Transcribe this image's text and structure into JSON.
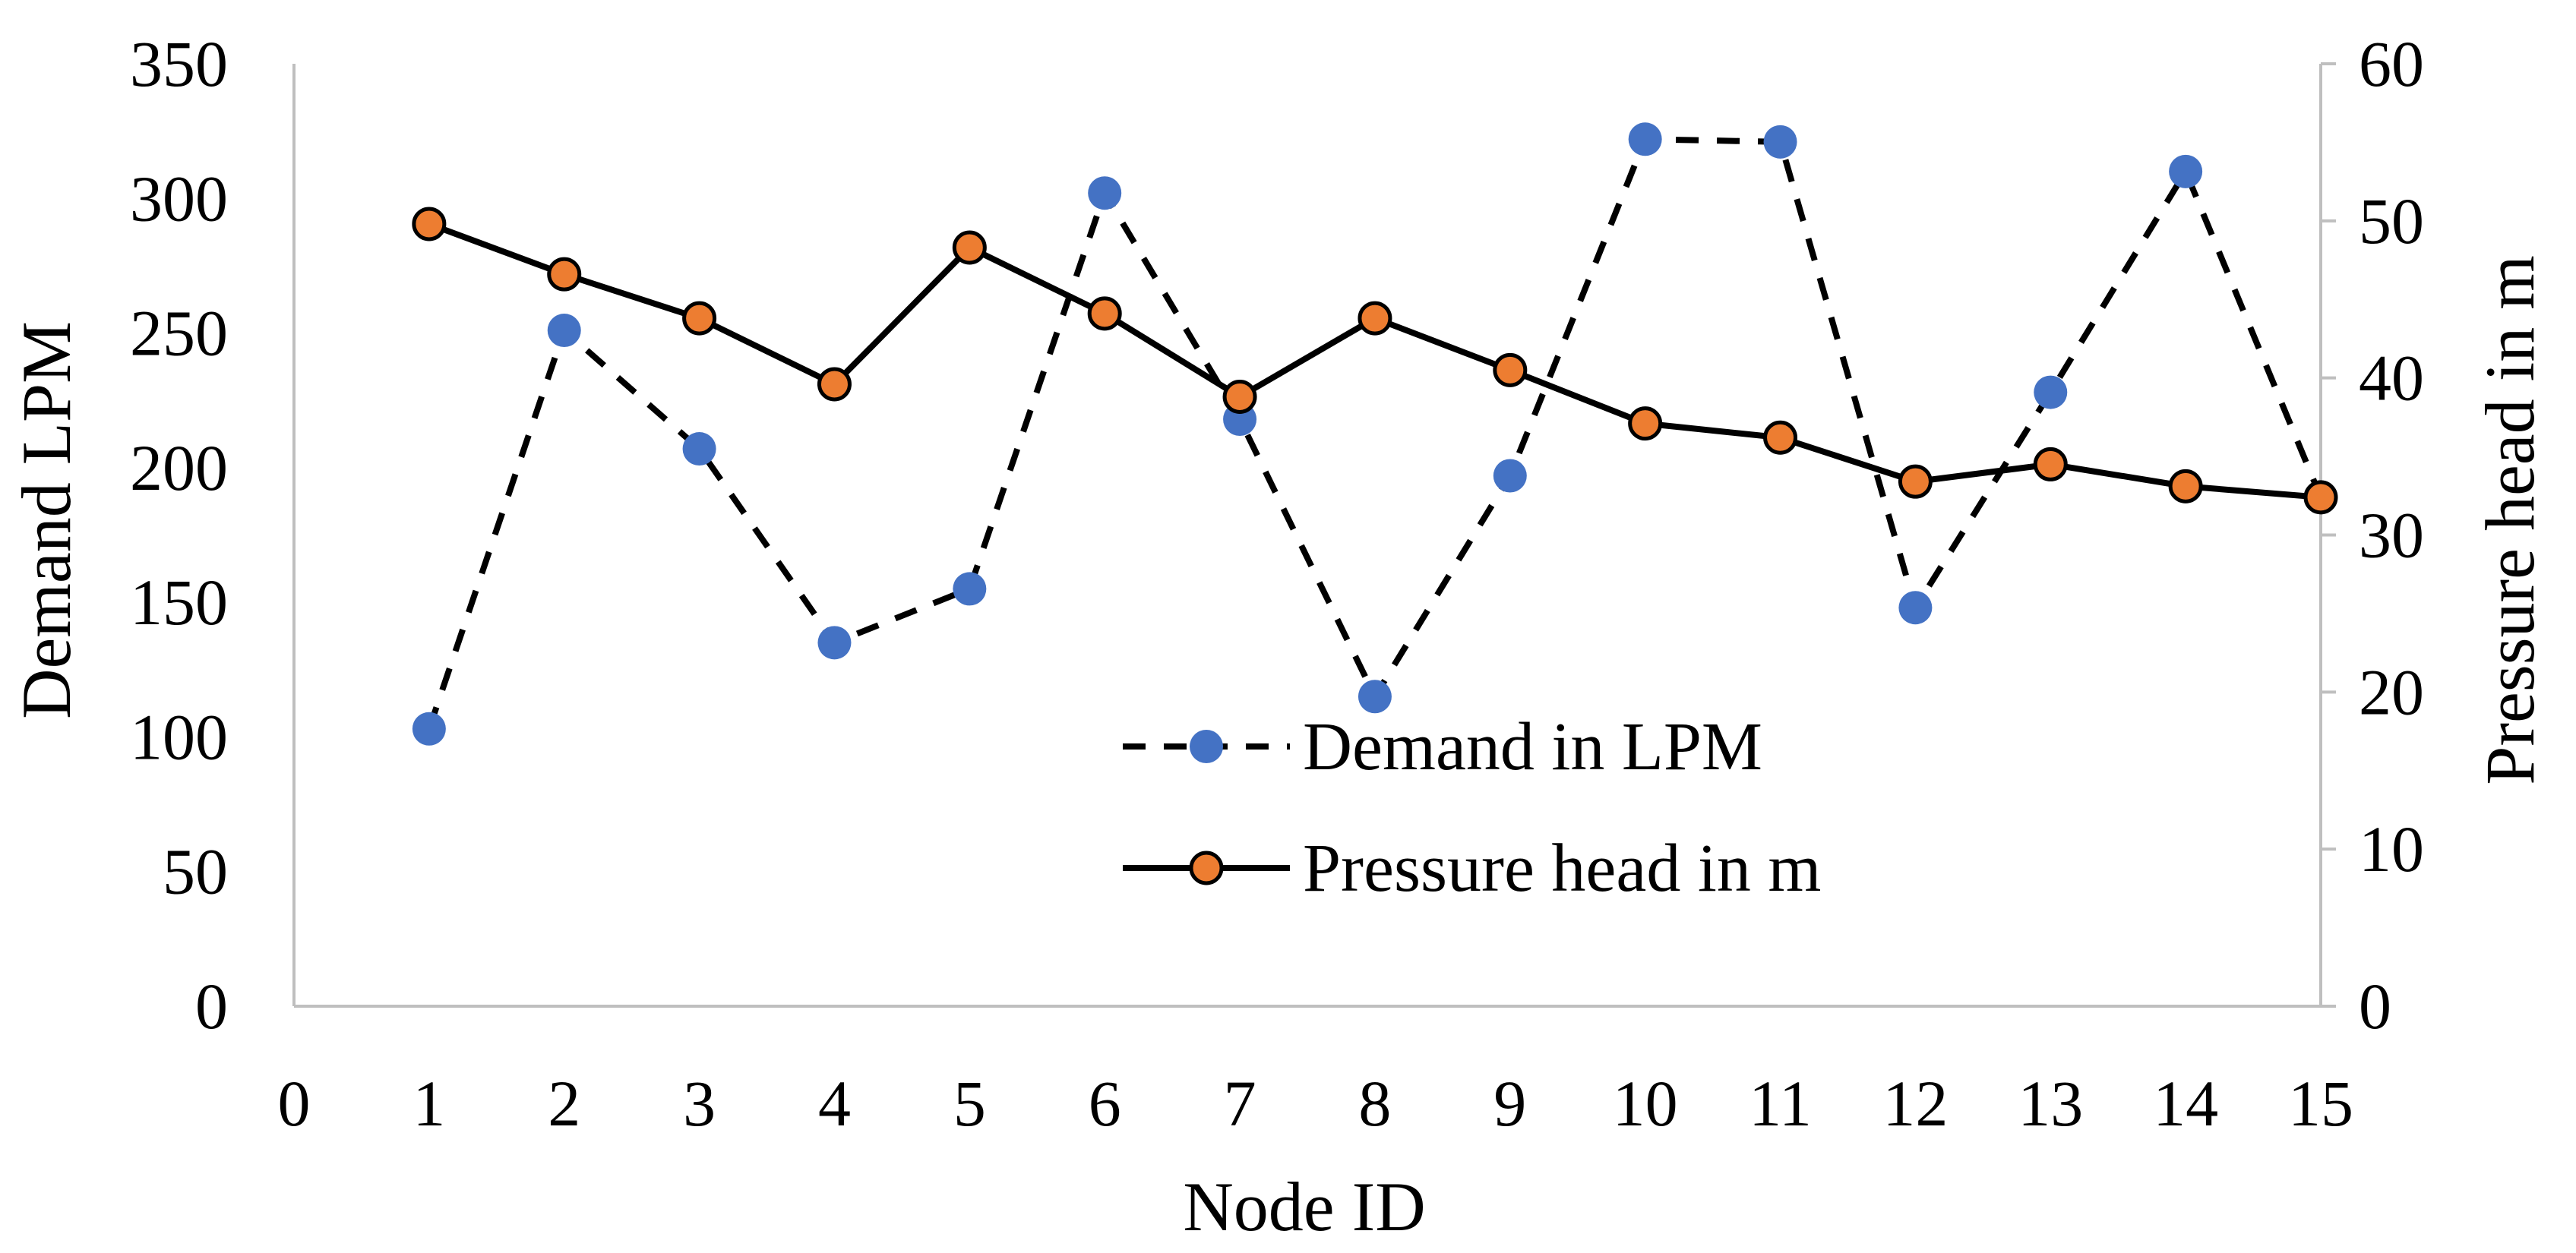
{
  "chart_data": {
    "type": "line",
    "x_axis": {
      "label": "Node ID",
      "range": [
        0,
        15
      ],
      "ticks": [
        "0",
        "1",
        "2",
        "3",
        "4",
        "5",
        "6",
        "7",
        "8",
        "9",
        "10",
        "11",
        "12",
        "13",
        "14",
        "15"
      ]
    },
    "y_axis_left": {
      "label": "Demand LPM",
      "range": [
        0,
        350
      ],
      "ticks": [
        "0",
        "50",
        "100",
        "150",
        "200",
        "250",
        "300",
        "350"
      ]
    },
    "y_axis_right": {
      "label": "Pressure head in m",
      "range": [
        0,
        60
      ],
      "ticks": [
        "0",
        "10",
        "20",
        "30",
        "40",
        "50",
        "60"
      ]
    },
    "grid": false,
    "legend_position": "center-right",
    "series": [
      {
        "name": "Demand in LPM",
        "axis": "left",
        "line_style": "dashed",
        "line_color": "#000000",
        "marker_color": "#4472C4",
        "marker_edge": "#4472C4",
        "x": [
          1,
          2,
          3,
          4,
          5,
          6,
          7,
          8,
          9,
          10,
          11,
          12,
          13,
          14,
          15
        ],
        "values": [
          103,
          251,
          207,
          135,
          155,
          302,
          218,
          115,
          197,
          322,
          321,
          148,
          228,
          310,
          189
        ]
      },
      {
        "name": "Pressure head in m",
        "axis": "right",
        "line_style": "solid",
        "line_color": "#000000",
        "marker_color": "#ED7D31",
        "marker_edge": "#000000",
        "x": [
          1,
          2,
          3,
          4,
          5,
          6,
          7,
          8,
          9,
          10,
          11,
          12,
          13,
          14,
          15
        ],
        "values": [
          49.8,
          46.6,
          43.8,
          39.6,
          48.3,
          44.1,
          38.8,
          43.8,
          40.5,
          37.1,
          36.2,
          33.4,
          34.5,
          33.1,
          32.4
        ]
      }
    ],
    "axis_line_color": "#BFBFBF"
  }
}
